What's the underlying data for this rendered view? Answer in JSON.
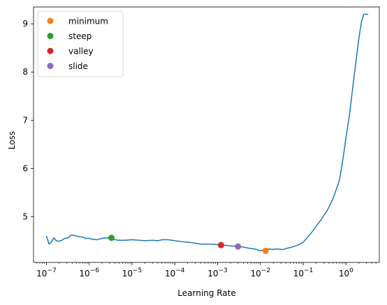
{
  "chart_data": {
    "type": "line",
    "title": "",
    "xlabel": "Learning Rate",
    "ylabel": "Loss",
    "xscale": "log",
    "xlim": [
      5e-08,
      6
    ],
    "ylim": [
      4.05,
      9.35
    ],
    "grid": false,
    "legend_position": "top-left",
    "x_ticks": [
      {
        "value": 1e-07,
        "base": "10",
        "exp": "−7"
      },
      {
        "value": 1e-06,
        "base": "10",
        "exp": "−6"
      },
      {
        "value": 1e-05,
        "base": "10",
        "exp": "−5"
      },
      {
        "value": 0.0001,
        "base": "10",
        "exp": "−4"
      },
      {
        "value": 0.001,
        "base": "10",
        "exp": "−3"
      },
      {
        "value": 0.01,
        "base": "10",
        "exp": "−2"
      },
      {
        "value": 0.1,
        "base": "10",
        "exp": "−1"
      },
      {
        "value": 1,
        "base": "10",
        "exp": "0"
      }
    ],
    "y_ticks": [
      {
        "value": 5,
        "label": "5"
      },
      {
        "value": 6,
        "label": "6"
      },
      {
        "value": 7,
        "label": "7"
      },
      {
        "value": 8,
        "label": "8"
      },
      {
        "value": 9,
        "label": "9"
      }
    ],
    "series": [
      {
        "color": "#1f77b4",
        "x": [
          1e-07,
          1.15e-07,
          1.3e-07,
          1.5e-07,
          1.7e-07,
          2e-07,
          2.3e-07,
          2.7e-07,
          3.2e-07,
          3.8e-07,
          4.5e-07,
          5e-07,
          6e-07,
          7e-07,
          8e-07,
          1e-06,
          1.2e-06,
          1.5e-06,
          2e-06,
          2.5e-06,
          3.2e-06,
          4e-06,
          5e-06,
          7e-06,
          1e-05,
          1.5e-05,
          2e-05,
          3e-05,
          4e-05,
          5e-05,
          7e-05,
          0.0001,
          0.00015,
          0.0002,
          0.00025,
          0.0003,
          0.0004,
          0.0005,
          0.0007,
          0.001,
          0.0013,
          0.0017,
          0.0022,
          0.003,
          0.004,
          0.005,
          0.006,
          0.007,
          0.008,
          0.009,
          0.01,
          0.012,
          0.015,
          0.02,
          0.025,
          0.03,
          0.035,
          0.04,
          0.05,
          0.06,
          0.07,
          0.08,
          0.1,
          0.12,
          0.15,
          0.18,
          0.22,
          0.26,
          0.3,
          0.35,
          0.4,
          0.5,
          0.6,
          0.7,
          0.8,
          0.9,
          1.0,
          1.2,
          1.4,
          1.7,
          2.0,
          2.3,
          2.6,
          3.0,
          3.3
        ],
        "y": [
          4.6,
          4.43,
          4.47,
          4.56,
          4.5,
          4.49,
          4.51,
          4.55,
          4.56,
          4.62,
          4.61,
          4.6,
          4.58,
          4.58,
          4.55,
          4.55,
          4.53,
          4.52,
          4.55,
          4.56,
          4.55,
          4.52,
          4.51,
          4.51,
          4.52,
          4.51,
          4.5,
          4.51,
          4.5,
          4.52,
          4.52,
          4.5,
          4.48,
          4.47,
          4.46,
          4.45,
          4.43,
          4.43,
          4.43,
          4.42,
          4.41,
          4.4,
          4.39,
          4.38,
          4.37,
          4.35,
          4.34,
          4.33,
          4.32,
          4.3,
          4.29,
          4.31,
          4.33,
          4.32,
          4.33,
          4.32,
          4.32,
          4.34,
          4.36,
          4.38,
          4.4,
          4.42,
          4.47,
          4.55,
          4.65,
          4.74,
          4.85,
          4.93,
          5.02,
          5.1,
          5.2,
          5.38,
          5.58,
          5.75,
          6.05,
          6.35,
          6.65,
          7.1,
          7.6,
          8.2,
          8.7,
          9.05,
          9.2,
          9.2,
          9.2
        ]
      }
    ],
    "points": [
      {
        "name": "minimum",
        "color": "#ff7f0e",
        "x": 0.0132,
        "y": 4.29
      },
      {
        "name": "steep",
        "color": "#2ca02c",
        "x": 3.3e-06,
        "y": 4.56
      },
      {
        "name": "valley",
        "color": "#d62728",
        "x": 0.0012,
        "y": 4.41
      },
      {
        "name": "slide",
        "color": "#9467bd",
        "x": 0.003,
        "y": 4.38
      }
    ]
  }
}
